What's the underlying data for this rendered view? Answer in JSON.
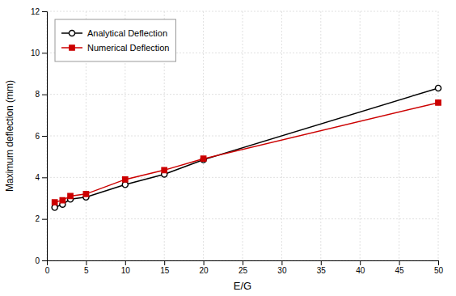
{
  "chart_data": {
    "type": "line",
    "x": [
      1,
      2,
      3,
      5,
      10,
      15,
      20,
      50
    ],
    "series": [
      {
        "name": "Analytical Deflection",
        "color": "#000000",
        "marker": "circle",
        "values": [
          2.55,
          2.7,
          2.95,
          3.05,
          3.65,
          4.15,
          4.85,
          8.3
        ]
      },
      {
        "name": "Numerical Deflection",
        "color": "#cc0000",
        "marker": "square",
        "values": [
          2.8,
          2.9,
          3.1,
          3.2,
          3.9,
          4.35,
          4.9,
          7.6
        ]
      }
    ],
    "xlabel": "E/G",
    "ylabel": "Maximum deflection (mm)",
    "xlim": [
      0,
      50
    ],
    "ylim": [
      0,
      12
    ],
    "xticks": [
      0,
      5,
      10,
      15,
      20,
      25,
      30,
      35,
      40,
      45,
      50
    ],
    "yticks": [
      0,
      2,
      4,
      6,
      8,
      10,
      12
    ],
    "grid": true,
    "legend": "upper left"
  }
}
